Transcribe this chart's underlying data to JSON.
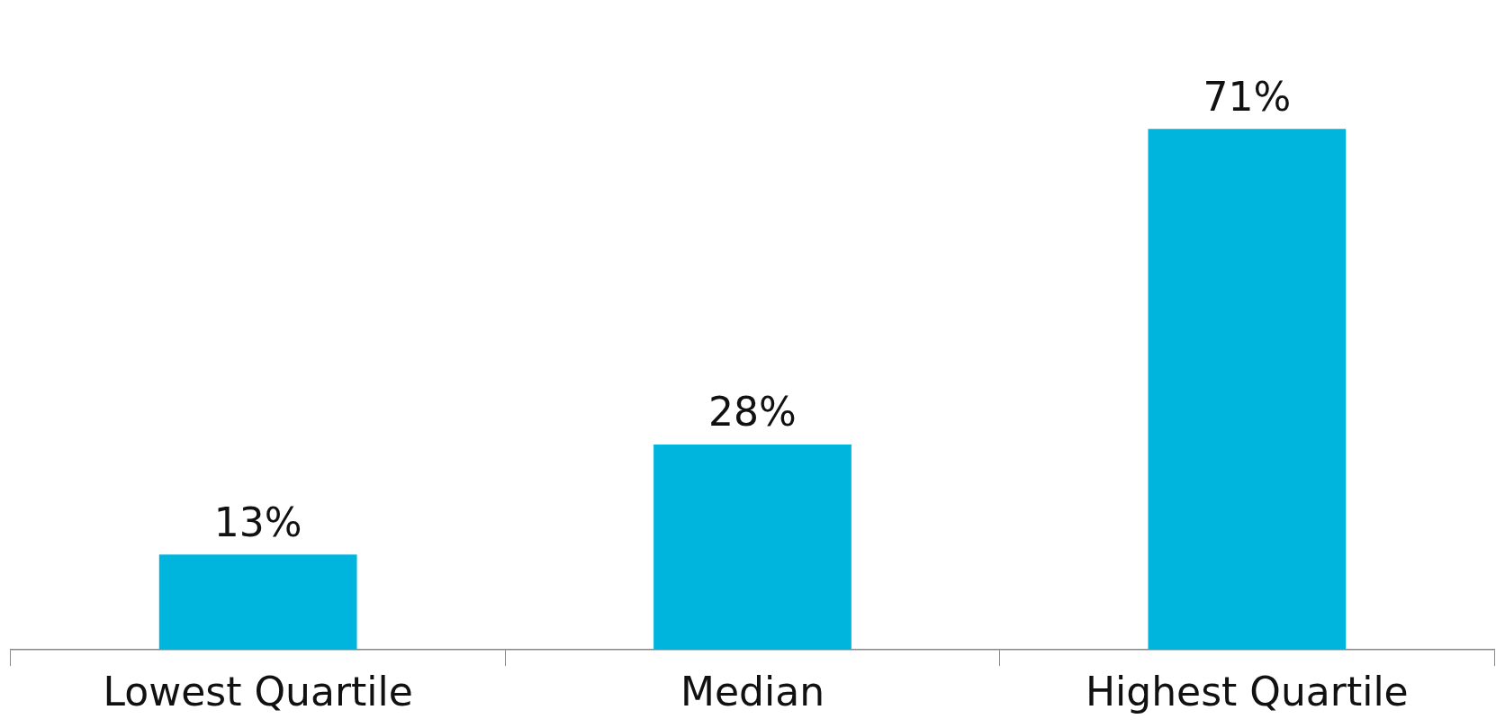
{
  "chart_data": {
    "type": "bar",
    "categories": [
      "Lowest Quartile",
      "Median",
      "Highest Quartile"
    ],
    "values": [
      13,
      28,
      71
    ],
    "color": "#00b5dd",
    "value_labels": [
      "13%",
      "28%",
      "71%"
    ],
    "grid": false,
    "legend": false
  }
}
